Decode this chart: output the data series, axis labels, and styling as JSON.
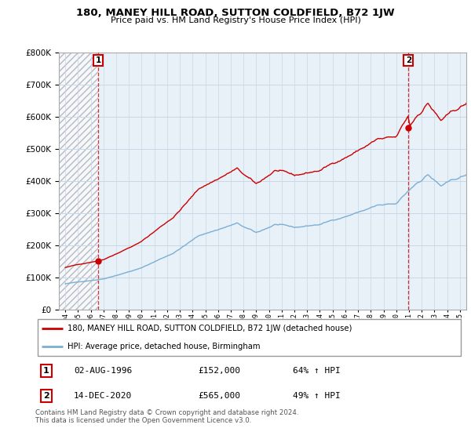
{
  "title": "180, MANEY HILL ROAD, SUTTON COLDFIELD, B72 1JW",
  "subtitle": "Price paid vs. HM Land Registry's House Price Index (HPI)",
  "sale1_date": "02-AUG-1996",
  "sale1_price": 152000,
  "sale1_year": 1996.583,
  "sale2_date": "14-DEC-2020",
  "sale2_price": 565000,
  "sale2_year": 2020.958,
  "legend_line1": "180, MANEY HILL ROAD, SUTTON COLDFIELD, B72 1JW (detached house)",
  "legend_line2": "HPI: Average price, detached house, Birmingham",
  "footer": "Contains HM Land Registry data © Crown copyright and database right 2024.\nThis data is licensed under the Open Government Licence v3.0.",
  "ylim": [
    0,
    800000
  ],
  "xlim_start": 1993.5,
  "xlim_end": 2025.5,
  "red_color": "#cc0000",
  "blue_color": "#7bafd4",
  "bg_color": "#e8f0f8",
  "grid_color": "#c8d8e8",
  "dashed_color": "#cc0000"
}
